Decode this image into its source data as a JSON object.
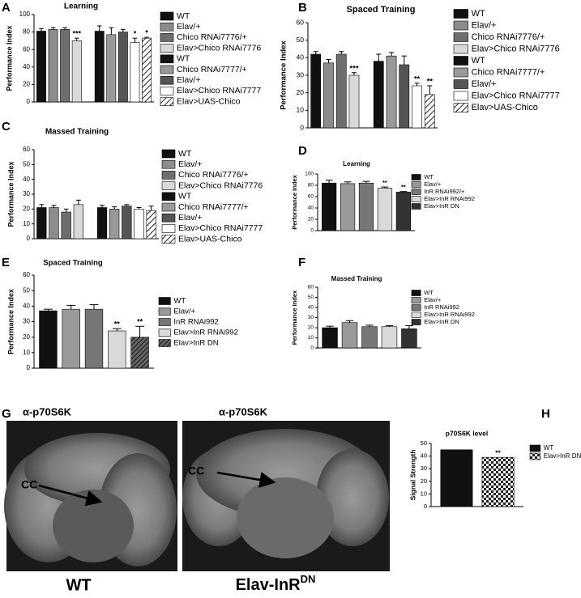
{
  "panel_labels": [
    "A",
    "B",
    "C",
    "D",
    "E",
    "F",
    "G",
    "H"
  ],
  "image_panel": {
    "stain_labels": [
      "α-p70S6K",
      "α-p70S6K"
    ],
    "arrow_labels": [
      "CC",
      "CC"
    ],
    "captions": [
      "WT",
      "Elav-InR"
    ],
    "caption_sup": "DN"
  },
  "chart_data": [
    {
      "type": "bar",
      "title": "Learning",
      "y_label": "Performance Index",
      "ylim": [
        0,
        100
      ],
      "yticks": [
        0,
        20,
        40,
        60,
        80,
        100
      ],
      "categories": [
        "WT",
        "Elav/+",
        "Chico RNAi7776/+",
        "Elav>Chico RNAi7776",
        "WT",
        "Chico RNAi7777/+",
        "Elav/+",
        "Elav>Chico RNAi7777",
        "Elav>UAS-Chico"
      ],
      "values": [
        81,
        83,
        83,
        70,
        81,
        77,
        80,
        68,
        73
      ],
      "errors": [
        3,
        2,
        2,
        3,
        6,
        8,
        3,
        5,
        1
      ],
      "colors": [
        "#111111",
        "#8c8c8c",
        "#6e6e6e",
        "#d9d9d9",
        "#111111",
        "#999999",
        "#555555",
        "#ffffff",
        "hatch"
      ],
      "annotations": [
        null,
        null,
        null,
        "***",
        null,
        null,
        null,
        "*",
        "*"
      ]
    },
    {
      "type": "bar",
      "title": "Spaced Training",
      "y_label": "Performance Index",
      "ylim": [
        0,
        60
      ],
      "yticks": [
        0,
        10,
        20,
        30,
        40,
        50,
        60
      ],
      "categories": [
        "WT",
        "Elav/+",
        "Chico RNAi7776/+",
        "Elav>Chico RNAi7776",
        "WT",
        "Chico RNAi7777/+",
        "Elav/+",
        "Elav>Chico RNAi7777",
        "Elav>UAS-Chico"
      ],
      "values": [
        42,
        37,
        42,
        30,
        38,
        41,
        36,
        24,
        19
      ],
      "errors": [
        1.5,
        2,
        1.5,
        1.5,
        4,
        2,
        5,
        1.5,
        5
      ],
      "colors": [
        "#111111",
        "#8c8c8c",
        "#6e6e6e",
        "#d9d9d9",
        "#111111",
        "#999999",
        "#555555",
        "#ffffff",
        "hatch"
      ],
      "annotations": [
        null,
        null,
        null,
        "***",
        null,
        null,
        null,
        "**",
        "**"
      ]
    },
    {
      "type": "bar",
      "title": "Massed Training",
      "y_label": "Performance Index",
      "ylim": [
        0,
        60
      ],
      "yticks": [
        0,
        10,
        20,
        30,
        40,
        50,
        60
      ],
      "categories": [
        "WT",
        "Elav/+",
        "Chico RNAi7776/+",
        "Elav>Chico RNAi7776",
        "WT",
        "Chico RNAi7777/+",
        "Elav/+",
        "Elav>Chico RNAi7777",
        "Elav>UAS-Chico"
      ],
      "values": [
        21,
        21,
        18,
        23,
        21,
        20,
        22,
        20,
        19
      ],
      "errors": [
        2,
        1.5,
        2,
        3,
        1.5,
        1.5,
        1,
        1,
        3
      ],
      "colors": [
        "#111111",
        "#8c8c8c",
        "#6e6e6e",
        "#d9d9d9",
        "#111111",
        "#999999",
        "#555555",
        "#ffffff",
        "hatch"
      ],
      "annotations": [
        null,
        null,
        null,
        null,
        null,
        null,
        null,
        null,
        null
      ]
    },
    {
      "type": "bar",
      "title": "Learning",
      "y_label": "Performance Index",
      "ylim": [
        0,
        100
      ],
      "yticks": [
        0,
        20,
        40,
        60,
        80,
        100
      ],
      "categories": [
        "WT",
        "Elav/+",
        "InR RNAi992/+",
        "Elav>InR RNAi992",
        "Elav>InR DN"
      ],
      "values": [
        84,
        83,
        84,
        75,
        68
      ],
      "errors": [
        5,
        3,
        3,
        2,
        1
      ],
      "colors": [
        "#111111",
        "#999999",
        "#777777",
        "#d9d9d9",
        "#333333"
      ],
      "annotations": [
        null,
        null,
        null,
        "**",
        "**"
      ]
    },
    {
      "type": "bar",
      "title": "Spaced Training",
      "y_label": "Performance Index",
      "ylim": [
        0,
        60
      ],
      "yticks": [
        0,
        10,
        20,
        30,
        40,
        50,
        60
      ],
      "categories": [
        "WT",
        "Elav/+",
        "InR RNAi992",
        "Elav>InR RNAi992",
        "Elav>InR DN"
      ],
      "values": [
        37,
        38,
        38,
        24,
        20
      ],
      "errors": [
        1,
        2.5,
        3,
        1.5,
        7
      ],
      "colors": [
        "#111111",
        "#999999",
        "#777777",
        "#d9d9d9",
        "darkhatch"
      ],
      "annotations": [
        null,
        null,
        null,
        "**",
        "**"
      ]
    },
    {
      "type": "bar",
      "title": "Massed Training",
      "y_label": "Performance Index",
      "ylim": [
        0,
        60
      ],
      "yticks": [
        0,
        10,
        20,
        30,
        40,
        50,
        60
      ],
      "categories": [
        "WT",
        "Elav/+",
        "InR RNAi992",
        "Elav>InR RNAi992",
        "Elav>InR DN"
      ],
      "values": [
        20,
        25,
        21,
        21,
        19
      ],
      "errors": [
        1.5,
        2,
        1.5,
        1,
        3
      ],
      "colors": [
        "#111111",
        "#999999",
        "#777777",
        "#d9d9d9",
        "#333333"
      ],
      "annotations": [
        null,
        null,
        null,
        null,
        null
      ]
    },
    {
      "type": "bar",
      "title": "p70S6K level",
      "y_label": "Signal Strength",
      "ylim": [
        0,
        50
      ],
      "yticks": [
        0,
        10,
        20,
        30,
        40,
        50
      ],
      "categories": [
        "WT",
        "Elav>InR DN"
      ],
      "values": [
        45,
        39
      ],
      "errors": [
        0,
        0
      ],
      "colors": [
        "#111111",
        "checker"
      ],
      "annotations": [
        null,
        "**"
      ]
    }
  ]
}
